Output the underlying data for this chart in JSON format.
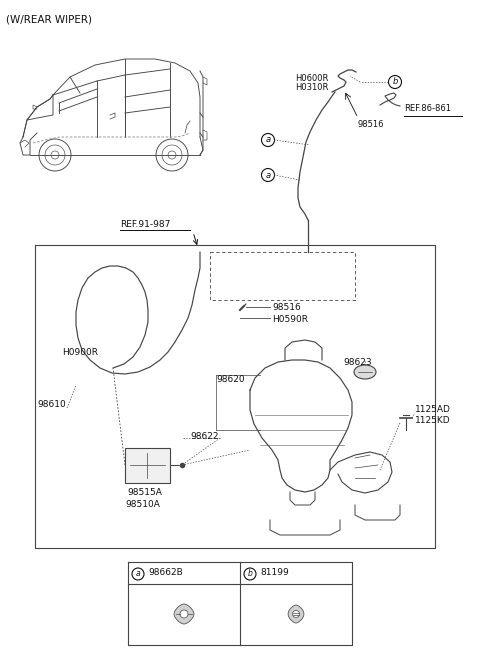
{
  "title": "(W/REAR WIPER)",
  "background_color": "#ffffff",
  "fig_width": 4.8,
  "fig_height": 6.55,
  "dpi": 100,
  "labels": {
    "ref_91_987": "REF.91-987",
    "ref_86_861": "REF.86-861",
    "h0600r": "H0600R",
    "h0310r": "H0310R",
    "h0900r": "H0900R",
    "h0590r": "H0590R",
    "part_98516_top": "98516",
    "part_98516_box": "98516",
    "part_98610": "98610",
    "part_98620": "98620",
    "part_98622": "98622",
    "part_98623": "98623",
    "part_98515a": "98515A",
    "part_98510a": "98510A",
    "part_1125ad": "1125AD",
    "part_1125kd": "1125KD",
    "legend_a_code": "98662B",
    "legend_b_code": "81199",
    "callout_a": "a",
    "callout_b": "b"
  }
}
